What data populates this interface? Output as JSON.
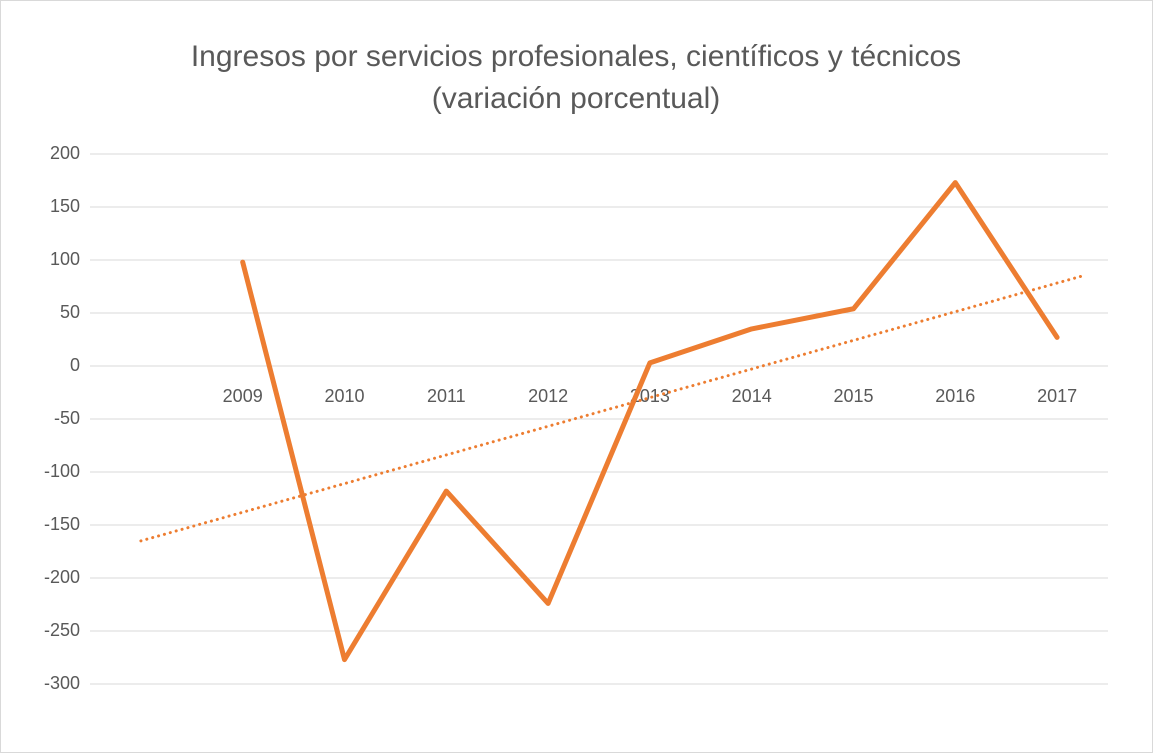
{
  "chart_data": {
    "type": "line",
    "title": "Ingresos por servicios profesionales, científicos y técnicos (variación porcentual)",
    "categories": [
      null,
      "2009",
      "2010",
      "2011",
      "2012",
      "2013",
      "2014",
      "2015",
      "2016",
      "2017"
    ],
    "series": [
      {
        "color": "#ed7d31",
        "values": [
          null,
          98,
          -277,
          -118,
          -224,
          3,
          35,
          54,
          173,
          27
        ]
      }
    ],
    "trendline": {
      "color": "#ed7d31",
      "style": "dotted",
      "values": [
        -165,
        85
      ]
    },
    "ylim": [
      -300,
      200
    ],
    "yticks": [
      -300,
      -250,
      -200,
      -150,
      -100,
      -50,
      0,
      50,
      100,
      150,
      200
    ],
    "grid": true
  }
}
